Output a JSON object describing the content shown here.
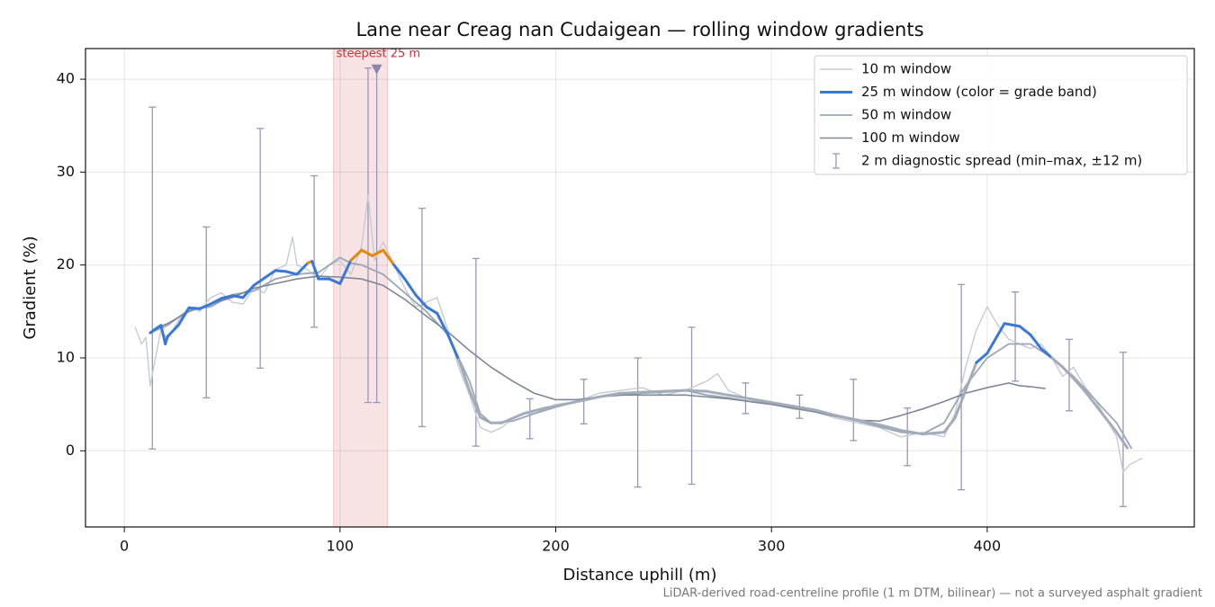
{
  "chart_data": {
    "type": "line",
    "title": "Lane near Creag nan Cudaigean — rolling window gradients",
    "xlabel": "Distance uphill (m)",
    "ylabel": "Gradient (%)",
    "footnote": "LiDAR-derived road-centreline profile (1 m DTM, bilinear) — not a surveyed asphalt gradient",
    "xlim": [
      -18,
      496
    ],
    "ylim": [
      -8.2,
      43.3
    ],
    "xticks": [
      0,
      100,
      200,
      300,
      400
    ],
    "yticks": [
      0,
      10,
      20,
      30,
      40
    ],
    "grid": true,
    "legend": "upper right",
    "highlight": {
      "x": [
        97,
        122
      ],
      "label": "steepest 25 m",
      "color": "#d9636b",
      "marker": [
        117,
        41
      ],
      "marker_color": "#8a84b0"
    },
    "series": [
      {
        "name": "10 m window",
        "color": "#c5cad3",
        "x": [
          5,
          8,
          10,
          12,
          14,
          17,
          20,
          25,
          30,
          35,
          40,
          45,
          50,
          55,
          60,
          65,
          70,
          75,
          78,
          80,
          85,
          90,
          95,
          100,
          105,
          110,
          113,
          116,
          120,
          125,
          130,
          135,
          140,
          145,
          150,
          155,
          160,
          165,
          170,
          175,
          180,
          185,
          190,
          200,
          210,
          220,
          230,
          240,
          250,
          260,
          270,
          275,
          280,
          290,
          300,
          310,
          320,
          330,
          340,
          350,
          360,
          370,
          380,
          385,
          390,
          395,
          400,
          405,
          410,
          420,
          425,
          430,
          435,
          440,
          445,
          450,
          455,
          460,
          463,
          466,
          470,
          472
        ],
        "values": [
          13.3,
          11.5,
          12.2,
          7.0,
          9.5,
          13.0,
          12.0,
          14.0,
          15.5,
          15.0,
          16.5,
          17.0,
          16.0,
          15.8,
          17.5,
          17.0,
          19.5,
          20.0,
          23.0,
          20.0,
          19.5,
          18.5,
          20.0,
          20.5,
          19.0,
          22.0,
          27.5,
          20.5,
          22.5,
          20.0,
          17.5,
          15.5,
          16.0,
          16.5,
          13.0,
          9.0,
          6.0,
          2.5,
          2.0,
          2.5,
          3.5,
          4.0,
          4.0,
          5.0,
          5.3,
          6.2,
          6.5,
          6.8,
          6.0,
          6.5,
          7.5,
          8.3,
          6.5,
          5.5,
          5.0,
          4.5,
          4.2,
          3.5,
          3.0,
          2.5,
          1.5,
          2.0,
          1.5,
          4.0,
          9.0,
          13.0,
          15.5,
          13.5,
          12.0,
          11.0,
          11.5,
          10.0,
          8.0,
          9.0,
          7.0,
          5.5,
          3.5,
          1.5,
          -2.3,
          -1.5,
          -1.0,
          -0.8
        ]
      },
      {
        "name": "25 m window (color = grade band)",
        "color": "#3a78d8",
        "bands": [
          {
            "below": 10,
            "color": "#a3adba"
          },
          {
            "above": 20,
            "color": "#e08a0b"
          }
        ],
        "x": [
          12,
          15,
          17,
          19,
          20,
          25,
          30,
          35,
          40,
          45,
          50,
          55,
          60,
          65,
          70,
          75,
          80,
          85,
          87,
          90,
          95,
          100,
          105,
          110,
          115,
          120,
          125,
          130,
          135,
          140,
          145,
          150,
          155,
          160,
          165,
          170,
          175,
          180,
          185,
          190,
          195,
          200,
          210,
          220,
          230,
          240,
          250,
          260,
          270,
          280,
          290,
          300,
          310,
          320,
          330,
          340,
          350,
          360,
          370,
          380,
          385,
          390,
          395,
          400,
          405,
          408,
          415,
          420,
          425,
          430,
          435,
          440,
          445,
          450,
          455,
          460,
          465
        ],
        "values": [
          12.7,
          13.2,
          13.5,
          11.5,
          12.3,
          13.5,
          15.4,
          15.3,
          15.8,
          16.4,
          16.7,
          16.5,
          17.8,
          18.6,
          19.4,
          19.3,
          19.0,
          20.2,
          20.4,
          18.5,
          18.5,
          18.0,
          20.5,
          21.6,
          21.0,
          21.6,
          20.0,
          18.5,
          16.8,
          15.5,
          14.8,
          12.5,
          9.8,
          6.5,
          3.6,
          3.0,
          3.0,
          3.5,
          4.0,
          4.3,
          4.6,
          4.8,
          5.3,
          5.8,
          6.2,
          6.3,
          6.4,
          6.5,
          6.4,
          6.0,
          5.6,
          5.2,
          4.8,
          4.4,
          3.8,
          3.3,
          2.8,
          2.2,
          1.8,
          2.0,
          3.5,
          6.5,
          9.5,
          10.5,
          12.5,
          13.7,
          13.4,
          12.5,
          11.0,
          10.0,
          9.0,
          7.8,
          6.5,
          5.0,
          3.5,
          2.0,
          0.3
        ]
      },
      {
        "name": "50 m window",
        "color": "#9aa6b4",
        "x": [
          13,
          20,
          30,
          40,
          50,
          60,
          70,
          80,
          90,
          100,
          105,
          110,
          120,
          130,
          140,
          150,
          155,
          160,
          165,
          170,
          180,
          190,
          200,
          210,
          220,
          230,
          240,
          250,
          260,
          270,
          280,
          290,
          300,
          310,
          320,
          330,
          340,
          350,
          360,
          370,
          380,
          390,
          400,
          410,
          420,
          430,
          440,
          450,
          460,
          467
        ],
        "values": [
          12.8,
          13.5,
          15.2,
          15.5,
          16.8,
          17.2,
          18.5,
          19.0,
          19.2,
          20.8,
          20.2,
          20.0,
          19.0,
          17.0,
          15.0,
          12.5,
          10.0,
          7.5,
          4.0,
          3.0,
          3.2,
          4.0,
          4.7,
          5.3,
          5.8,
          6.0,
          6.2,
          6.3,
          6.5,
          6.0,
          5.7,
          5.3,
          5.0,
          4.7,
          4.3,
          3.7,
          3.2,
          2.6,
          2.0,
          1.8,
          3.0,
          7.0,
          10.0,
          11.5,
          11.5,
          10.0,
          8.0,
          5.5,
          3.0,
          0.2
        ]
      },
      {
        "name": "100 m window",
        "color": "#7d8796",
        "x": [
          13,
          20,
          30,
          40,
          50,
          60,
          70,
          80,
          90,
          100,
          110,
          120,
          130,
          140,
          150,
          160,
          170,
          180,
          190,
          200,
          210,
          220,
          230,
          240,
          250,
          260,
          270,
          280,
          290,
          300,
          310,
          320,
          330,
          340,
          350,
          360,
          370,
          380,
          390,
          400,
          410,
          415,
          420,
          427
        ],
        "values": [
          13.0,
          13.7,
          15.0,
          15.8,
          16.5,
          17.5,
          18.0,
          18.5,
          18.8,
          18.7,
          18.5,
          17.8,
          16.3,
          14.5,
          12.8,
          10.8,
          9.0,
          7.5,
          6.2,
          5.5,
          5.5,
          5.8,
          6.0,
          6.0,
          6.0,
          6.0,
          5.8,
          5.6,
          5.3,
          5.0,
          4.6,
          4.2,
          3.7,
          3.3,
          3.2,
          3.8,
          4.5,
          5.3,
          6.2,
          6.8,
          7.3,
          7.0,
          6.9,
          6.7
        ]
      }
    ],
    "error_bars": {
      "name": "2 m diagnostic spread (min–max, ±12 m)",
      "color": "#9b95b8",
      "x": [
        13,
        38,
        63,
        88,
        113,
        117,
        138,
        163,
        188,
        213,
        238,
        263,
        288,
        313,
        338,
        363,
        388,
        413,
        438,
        463
      ],
      "min": [
        0.2,
        5.7,
        8.9,
        13.3,
        5.2,
        5.2,
        2.6,
        0.5,
        1.3,
        2.9,
        -3.9,
        -3.6,
        4.0,
        3.5,
        1.1,
        -1.6,
        -4.2,
        7.5,
        4.3,
        -6.0
      ],
      "max": [
        37.0,
        24.1,
        34.7,
        29.6,
        41.2,
        41.2,
        26.1,
        20.7,
        5.6,
        7.7,
        10.0,
        13.3,
        7.3,
        6.0,
        7.7,
        4.6,
        17.9,
        17.1,
        12.0,
        10.6
      ]
    }
  }
}
